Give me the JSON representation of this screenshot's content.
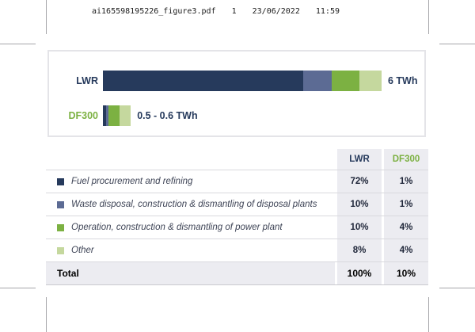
{
  "page_header": {
    "filename": "ai165598195226_figure3.pdf",
    "page_number": "1",
    "date": "23/06/2022",
    "time": "11:59"
  },
  "colors": {
    "navy": "#263a5c",
    "bluegray": "#5c6b94",
    "green": "#7cb142",
    "lightgreen": "#c5d89e",
    "cell_bg": "#ececf1",
    "row_line": "#d9d9de"
  },
  "chart_data": {
    "type": "bar",
    "orientation": "horizontal_stacked",
    "categories": [
      "LWR",
      "DF300"
    ],
    "category_label_colors": [
      "#263a5c",
      "#7cb142"
    ],
    "series": [
      {
        "name": "Fuel procurement and refining",
        "color": "#263a5c",
        "values": [
          72,
          1
        ]
      },
      {
        "name": "Waste disposal, construction & dismantling of disposal plants",
        "color": "#5c6b94",
        "values": [
          10,
          1
        ]
      },
      {
        "name": "Operation, construction & dismantling of power plant",
        "color": "#7cb142",
        "values": [
          10,
          4
        ]
      },
      {
        "name": "Other",
        "color": "#c5d89e",
        "values": [
          8,
          4
        ]
      }
    ],
    "values_unit": "%",
    "bar_total_labels": [
      "6 TWh",
      "0.5 - 0.6 TWh"
    ],
    "xlim": [
      0,
      100
    ],
    "grid": false,
    "legend_position": "table-below"
  },
  "table": {
    "column_headers": [
      "LWR",
      "DF300"
    ],
    "rows": [
      {
        "label": "Fuel procurement and refining",
        "swatch_color": "#263a5c",
        "values": [
          "72%",
          "1%"
        ]
      },
      {
        "label": "Waste disposal, construction & dismantling of disposal plants",
        "swatch_color": "#5c6b94",
        "values": [
          "10%",
          "1%"
        ]
      },
      {
        "label": "Operation, construction & dismantling of power plant",
        "swatch_color": "#7cb142",
        "values": [
          "10%",
          "4%"
        ]
      },
      {
        "label": "Other",
        "swatch_color": "#c5d89e",
        "values": [
          "8%",
          "4%"
        ]
      }
    ],
    "total_row": {
      "label": "Total",
      "values": [
        "100%",
        "10%"
      ]
    }
  }
}
